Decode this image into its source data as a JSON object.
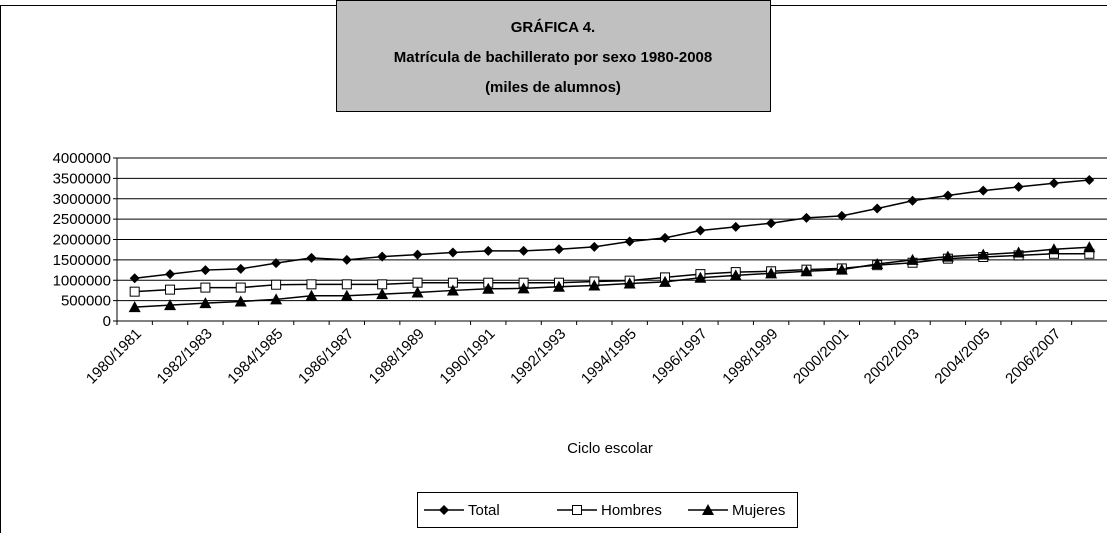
{
  "chart_data": {
    "type": "line",
    "title": "GRÁFICA 4.",
    "subtitle": "Matrícula de bachillerato por sexo 1980-2008",
    "subtitle2": "(miles de alumnos)",
    "x_label": "Ciclo escolar",
    "categories": [
      "1980/1981",
      null,
      "1982/1983",
      null,
      "1984/1985",
      null,
      "1986/1987",
      null,
      "1988/1989",
      null,
      "1990/1991",
      null,
      "1992/1993",
      null,
      "1994/1995",
      null,
      "1996/1997",
      null,
      "1998/1999",
      null,
      "2000/2001",
      null,
      "2002/2003",
      null,
      "2004/2005",
      null,
      "2006/2007",
      null
    ],
    "series": [
      {
        "name": "Total",
        "color": "#000000",
        "marker": "diamond",
        "values": [
          1050000,
          1150000,
          1250000,
          1280000,
          1420000,
          1550000,
          1500000,
          1580000,
          1630000,
          1680000,
          1720000,
          1720000,
          1760000,
          1820000,
          1950000,
          2040000,
          2220000,
          2310000,
          2400000,
          2530000,
          2580000,
          2760000,
          2950000,
          3080000,
          3200000,
          3290000,
          3380000,
          3460000
        ]
      },
      {
        "name": "Hombres",
        "color": "#000000",
        "marker": "square",
        "values": [
          720000,
          770000,
          820000,
          820000,
          890000,
          900000,
          900000,
          900000,
          940000,
          940000,
          940000,
          940000,
          940000,
          970000,
          990000,
          1070000,
          1150000,
          1200000,
          1220000,
          1260000,
          1290000,
          1370000,
          1430000,
          1530000,
          1570000,
          1610000,
          1650000,
          1650000
        ]
      },
      {
        "name": "Mujeres",
        "color": "#000000",
        "marker": "triangle",
        "values": [
          340000,
          390000,
          440000,
          480000,
          530000,
          620000,
          620000,
          660000,
          700000,
          750000,
          790000,
          800000,
          840000,
          870000,
          920000,
          960000,
          1060000,
          1120000,
          1170000,
          1220000,
          1260000,
          1400000,
          1500000,
          1580000,
          1630000,
          1680000,
          1760000,
          1810000
        ]
      }
    ],
    "ylim": [
      0,
      4000000
    ],
    "yticks": [
      0,
      500000,
      1000000,
      1500000,
      2000000,
      2500000,
      3000000,
      3500000,
      4000000
    ],
    "grid": true,
    "legend": "bottom"
  }
}
